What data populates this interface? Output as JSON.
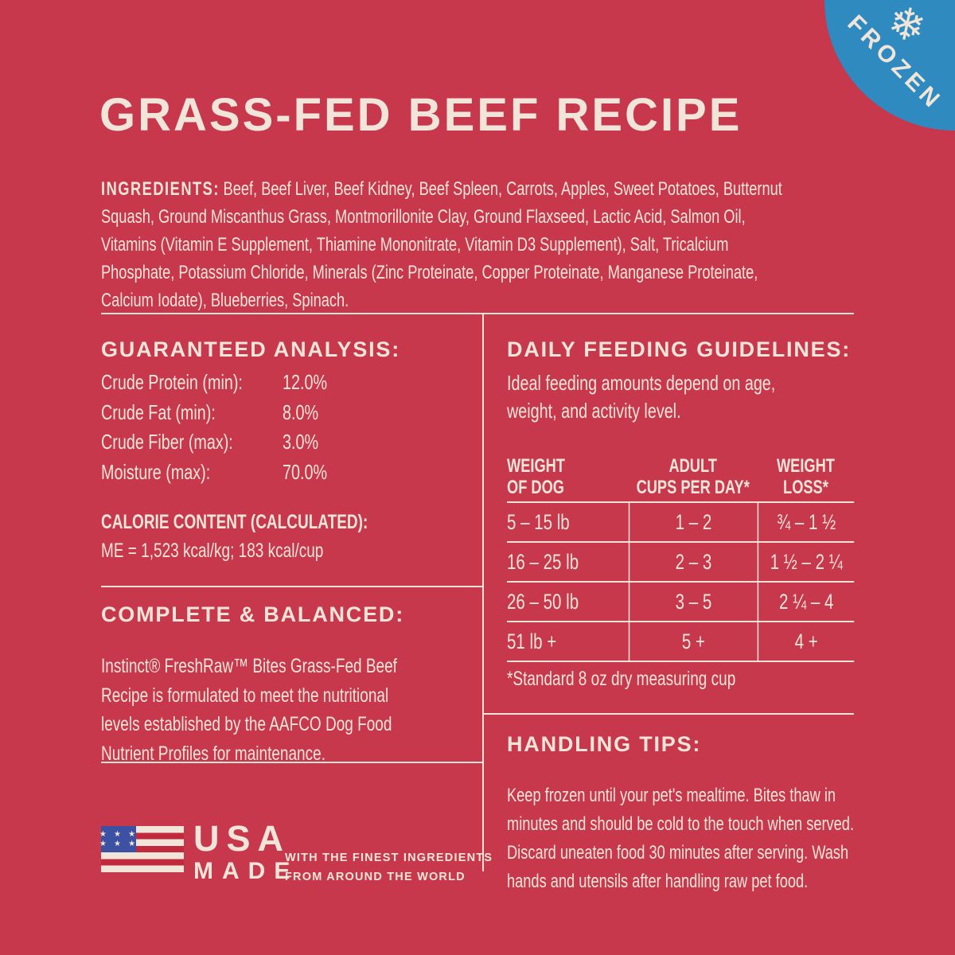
{
  "colors": {
    "background": "#C7384D",
    "cream_text": "#F0E5D8",
    "frozen_badge_blue": "#2E8ABF",
    "flag_canton_blue": "#3D51A3",
    "flag_stripe_red": "#C02A3C"
  },
  "badge": {
    "label": "FROZEN"
  },
  "title": "GRASS-FED BEEF RECIPE",
  "ingredients": {
    "label": "INGREDIENTS:",
    "text": "Beef, Beef Liver, Beef Kidney, Beef Spleen, Carrots, Apples, Sweet Potatoes, Butternut Squash, Ground Miscanthus Grass, Montmorillonite Clay, Ground Flaxseed, Lactic Acid, Salmon Oil, Vitamins (Vitamin E Supplement, Thiamine Mononitrate, Vitamin D3 Supplement), Salt, Tricalcium Phosphate, Potassium Chloride, Minerals (Zinc Proteinate, Copper Proteinate, Manganese Proteinate, Calcium Iodate), Blueberries, Spinach."
  },
  "guaranteed_analysis": {
    "heading": "GUARANTEED ANALYSIS:",
    "rows": [
      {
        "label": "Crude Protein (min):",
        "value": "12.0%"
      },
      {
        "label": "Crude Fat (min):",
        "value": "8.0%"
      },
      {
        "label": "Crude Fiber (max):",
        "value": "3.0%"
      },
      {
        "label": "Moisture (max):",
        "value": "70.0%"
      }
    ],
    "calorie_heading": "CALORIE CONTENT (CALCULATED):",
    "calorie_value": "ME = 1,523 kcal/kg; 183 kcal/cup"
  },
  "complete_balanced": {
    "heading": "COMPLETE & BALANCED:",
    "text": "Instinct® FreshRaw™ Bites Grass-Fed Beef Recipe is formulated to meet the nutritional levels established by the AAFCO Dog Food Nutrient Profiles for maintenance."
  },
  "usa_made": {
    "word1": "USA",
    "word2": "MADE",
    "tagline_line1": "WITH THE FINEST INGREDIENTS",
    "tagline_line2": "FROM AROUND THE WORLD"
  },
  "feeding_guidelines": {
    "heading": "DAILY FEEDING GUIDELINES:",
    "intro_line1": "Ideal feeding amounts depend on age,",
    "intro_line2": "weight, and activity level.",
    "table": {
      "headers": [
        {
          "line1": "WEIGHT",
          "line2": "OF DOG"
        },
        {
          "line1": "ADULT",
          "line2": "CUPS PER DAY*"
        },
        {
          "line1": "WEIGHT",
          "line2": "LOSS*"
        }
      ],
      "rows": [
        {
          "weight": "5 – 15 lb",
          "adult_cups": "1 – 2",
          "weight_loss": "¾ – 1 ½"
        },
        {
          "weight": "16 – 25 lb",
          "adult_cups": "2 – 3",
          "weight_loss": "1 ½ – 2 ¼"
        },
        {
          "weight": "26 – 50 lb",
          "adult_cups": "3 – 5",
          "weight_loss": "2 ¼ – 4"
        },
        {
          "weight": "51 lb +",
          "adult_cups": "5 +",
          "weight_loss": "4 +"
        }
      ]
    },
    "footnote": "*Standard 8 oz dry measuring cup"
  },
  "handling_tips": {
    "heading": "HANDLING TIPS:",
    "text": "Keep frozen until your pet's mealtime. Bites thaw in minutes and should be cold to the touch when served. Discard uneaten food 30 minutes after serving. Wash hands and utensils after handling raw pet food."
  }
}
